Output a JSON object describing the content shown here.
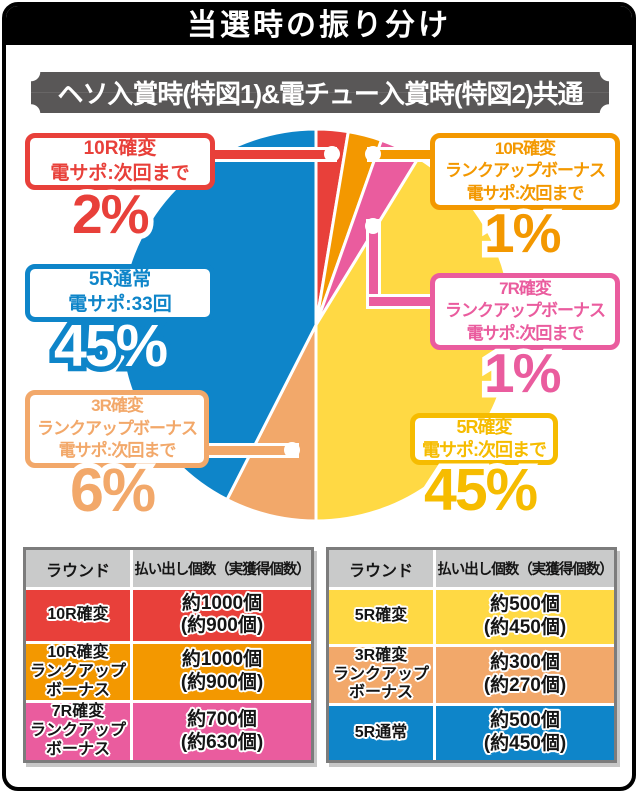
{
  "page": {
    "title": "当選時の振り分け",
    "subtitle": "ヘソ入賞時(特図1)&電チュー入賞時(特図2)共通"
  },
  "chart_data": {
    "type": "pie",
    "title": "当選時の振り分け",
    "subtitle": "ヘソ入賞時(特図1)&電チュー入賞時(特図2)共通",
    "unit": "percent",
    "legend_position": "callouts",
    "slices": [
      {
        "label": "10R確変 電サポ:次回まで",
        "value": 2,
        "color": "#E8403A"
      },
      {
        "label": "10R確変 ランクアップボーナス 電サポ:次回まで",
        "value": 1,
        "color": "#F39800"
      },
      {
        "label": "7R確変 ランクアップボーナス 電サポ:次回まで",
        "value": 1,
        "color": "#EA5C9E"
      },
      {
        "label": "5R確変 電サポ:次回まで",
        "value": 45,
        "color": "#FFD944"
      },
      {
        "label": "3R確変 ランクアップボーナス 電サポ:次回まで",
        "value": 6,
        "color": "#F2A86A"
      },
      {
        "label": "5R通常 電サポ:33回",
        "value": 45,
        "color": "#0E85C9"
      }
    ]
  },
  "callouts": {
    "r10": {
      "lines": "10R確変\n電サポ:次回まで",
      "pct": "2%"
    },
    "r10rub": {
      "lines": "10R確変\nランクアップボーナス\n電サポ:次回まで",
      "pct": "1%"
    },
    "r7rub": {
      "lines": "7R確変\nランクアップボーナス\n電サポ:次回まで",
      "pct": "1%"
    },
    "r5n": {
      "lines": "5R通常\n電サポ:33回",
      "pct": "45%"
    },
    "r3rub": {
      "lines": "3R確変\nランクアップボーナス\n電サポ:次回まで",
      "pct": "6%"
    },
    "r5k": {
      "lines": "5R確変\n電サポ:次回まで",
      "pct": "45%"
    }
  },
  "tables": {
    "left": {
      "headers": {
        "round": "ラウンド",
        "payout": "払い出し個数（実獲得個数）"
      },
      "rows": [
        {
          "round": "10R確変",
          "payout": "約1000個\n(約900個)",
          "color": "#E8403A"
        },
        {
          "round": "10R確変\nランクアップ\nボーナス",
          "payout": "約1000個\n(約900個)",
          "color": "#F39800"
        },
        {
          "round": "7R確変\nランクアップ\nボーナス",
          "payout": "約700個\n(約630個)",
          "color": "#EA5C9E"
        }
      ]
    },
    "right": {
      "headers": {
        "round": "ラウンド",
        "payout": "払い出し個数（実獲得個数）"
      },
      "rows": [
        {
          "round": "5R確変",
          "payout": "約500個\n(約450個)",
          "color": "#FFD944"
        },
        {
          "round": "3R確変\nランクアップ\nボーナス",
          "payout": "約300個\n(約270個)",
          "color": "#F2A86A"
        },
        {
          "round": "5R通常",
          "payout": "約500個\n(約450個)",
          "color": "#0E85C9"
        }
      ]
    }
  },
  "colors": {
    "header_gray": "#C9CACA",
    "subtitle_gray": "#595757",
    "gold_accent": "#F6BC00"
  }
}
